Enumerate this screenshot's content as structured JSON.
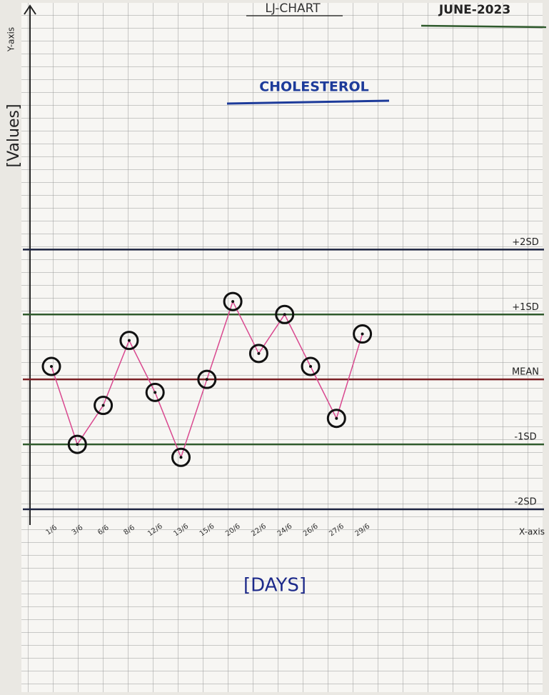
{
  "chart_data": {
    "type": "line",
    "title": "LJ-CHART",
    "date": "JUNE-2023",
    "subtitle": "CHOLESTEROL",
    "y_label": "[Values]",
    "x_label": "[DAYS]",
    "y_axis_name": "Y-axis",
    "x_axis_name": "X-axis",
    "categories": [
      "1/6",
      "3/6",
      "6/6",
      "8/6",
      "12/6",
      "13/6",
      "15/6",
      "20/6",
      "22/6",
      "24/6",
      "26/6",
      "27/6",
      "29/6"
    ],
    "series": [
      {
        "name": "CHOLESTEROL",
        "color": "#d9488f",
        "values": [
          0.2,
          -1.0,
          -0.4,
          0.6,
          -0.2,
          -1.2,
          0.0,
          1.2,
          0.4,
          1.0,
          0.2,
          -0.6,
          0.7
        ]
      }
    ],
    "reference_lines": [
      {
        "label": "+2SD",
        "value": 2,
        "color": "#1c2340"
      },
      {
        "label": "+1SD",
        "value": 1,
        "color": "#2f5a2c"
      },
      {
        "label": "MEAN",
        "value": 0,
        "color": "#7a1f24"
      },
      {
        "label": "-1SD",
        "value": -1,
        "color": "#2f5a2c"
      },
      {
        "label": "-2SD",
        "value": -2,
        "color": "#1c2340"
      }
    ],
    "ylim": [
      -2,
      5.7
    ]
  }
}
